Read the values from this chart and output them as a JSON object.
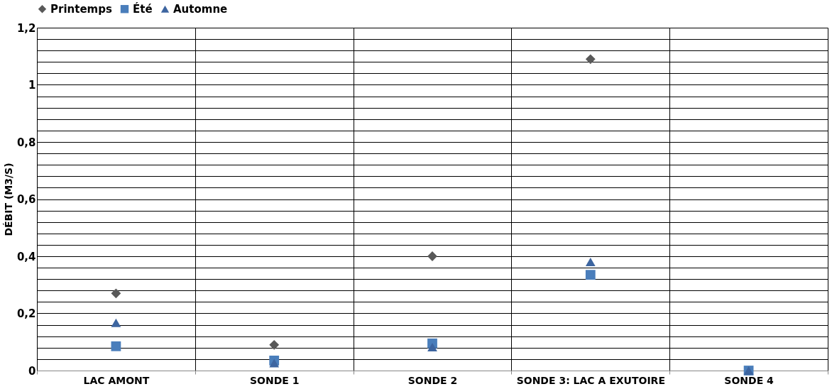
{
  "chart_data": {
    "type": "scatter",
    "ylabel": "DÉBIT (M3/S)",
    "categories": [
      "LAC AMONT",
      "SONDE 1",
      "SONDE 2",
      "SONDE 3: LAC A EXUTOIRE",
      "SONDE 4"
    ],
    "series": [
      {
        "name": "Printemps",
        "color": "#595959",
        "marker": "diamond",
        "values": [
          0.27,
          0.09,
          0.4,
          1.09,
          null
        ]
      },
      {
        "name": "Été",
        "color": "#4a7ebb",
        "marker": "square",
        "values": [
          0.085,
          0.035,
          0.095,
          0.335,
          0
        ]
      },
      {
        "name": "Automne",
        "color": "#3d65a0",
        "marker": "triangle",
        "values": [
          0.167,
          0.026,
          0.082,
          0.38,
          0
        ]
      }
    ],
    "ylim": [
      0,
      1.2
    ],
    "yticks": [
      {
        "value": 0,
        "label": "0"
      },
      {
        "value": 0.04,
        "label": null
      },
      {
        "value": 0.08,
        "label": null
      },
      {
        "value": 0.12,
        "label": null
      },
      {
        "value": 0.16,
        "label": null
      },
      {
        "value": 0.2,
        "label": "0,2"
      },
      {
        "value": 0.24,
        "label": null
      },
      {
        "value": 0.28,
        "label": null
      },
      {
        "value": 0.32,
        "label": null
      },
      {
        "value": 0.36,
        "label": null
      },
      {
        "value": 0.4,
        "label": "0,4"
      },
      {
        "value": 0.44,
        "label": null
      },
      {
        "value": 0.48,
        "label": null
      },
      {
        "value": 0.52,
        "label": null
      },
      {
        "value": 0.56,
        "label": null
      },
      {
        "value": 0.6,
        "label": "0,6"
      },
      {
        "value": 0.64,
        "label": null
      },
      {
        "value": 0.68,
        "label": null
      },
      {
        "value": 0.72,
        "label": null
      },
      {
        "value": 0.76,
        "label": null
      },
      {
        "value": 0.8,
        "label": "0,8"
      },
      {
        "value": 0.84,
        "label": null
      },
      {
        "value": 0.88,
        "label": null
      },
      {
        "value": 0.92,
        "label": null
      },
      {
        "value": 0.96,
        "label": null
      },
      {
        "value": 1,
        "label": "1"
      },
      {
        "value": 1.04,
        "label": null
      },
      {
        "value": 1.08,
        "label": null
      },
      {
        "value": 1.12,
        "label": null
      },
      {
        "value": 1.16,
        "label": null
      },
      {
        "value": 1.2,
        "label": "1,2"
      }
    ],
    "grid": true,
    "legend": "top"
  }
}
